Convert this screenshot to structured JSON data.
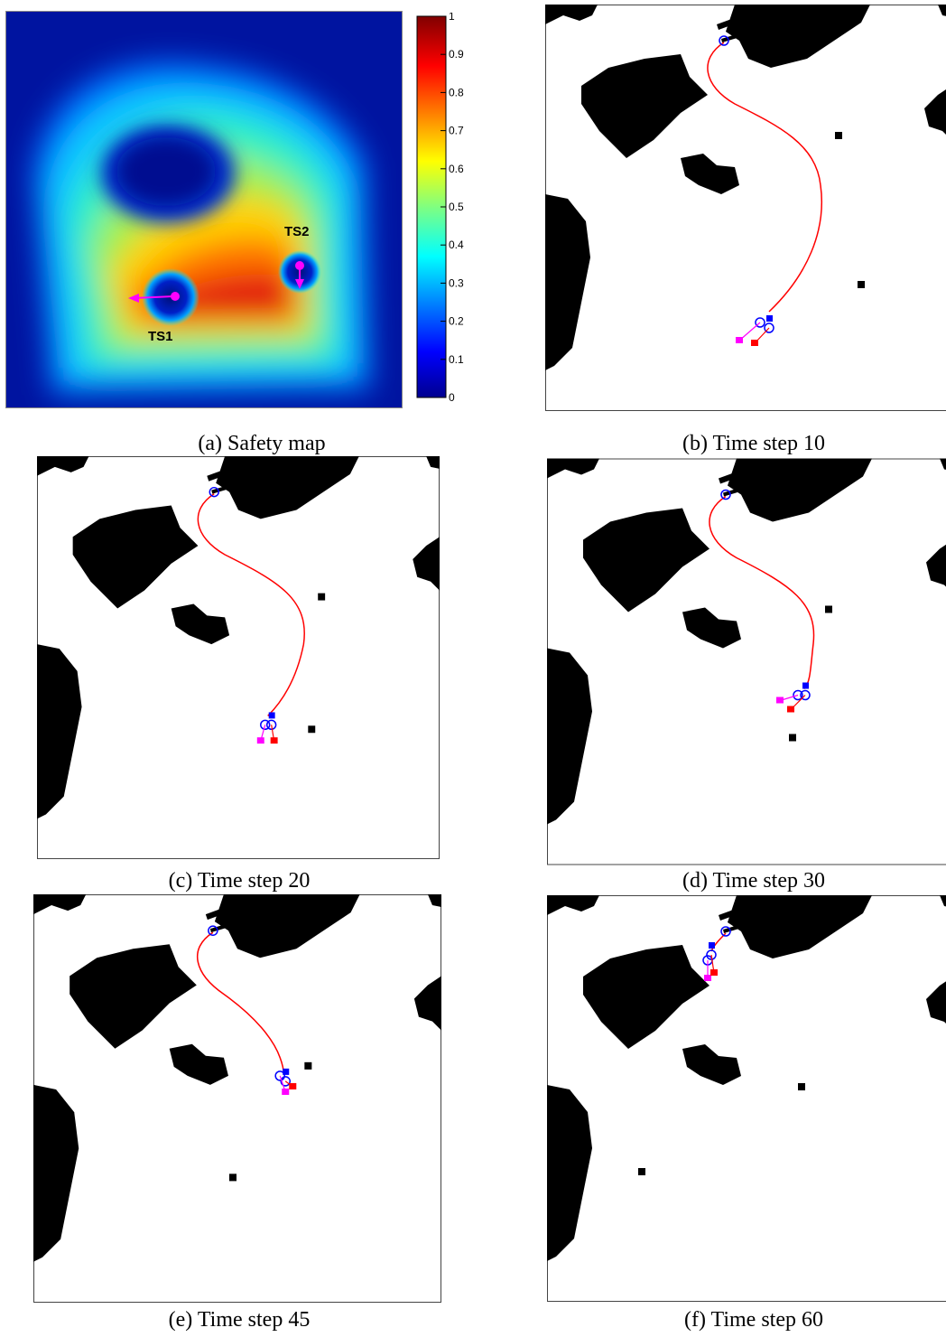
{
  "figure": {
    "panels": [
      {
        "id": "a",
        "caption": "(a) Safety map"
      },
      {
        "id": "b",
        "caption": "(b) Time step 10"
      },
      {
        "id": "c",
        "caption": "(c) Time step 20"
      },
      {
        "id": "d",
        "caption": "(d) Time step 30"
      },
      {
        "id": "e",
        "caption": "(e) Time step 45"
      },
      {
        "id": "f",
        "caption": "(f) Time step 60"
      }
    ],
    "safety_map": {
      "labels": {
        "ts1": "TS1",
        "ts2": "TS2"
      },
      "colorbar_ticks": [
        "0",
        "0.1",
        "0.2",
        "0.3",
        "0.4",
        "0.5",
        "0.6",
        "0.7",
        "0.8",
        "0.9",
        "1"
      ]
    },
    "colors": {
      "path": "#ff0000",
      "own_ship": "#0000ff",
      "target_ship_1": "#ff00ff",
      "target_ship_2": "#ff0000",
      "land": "#000000"
    }
  }
}
